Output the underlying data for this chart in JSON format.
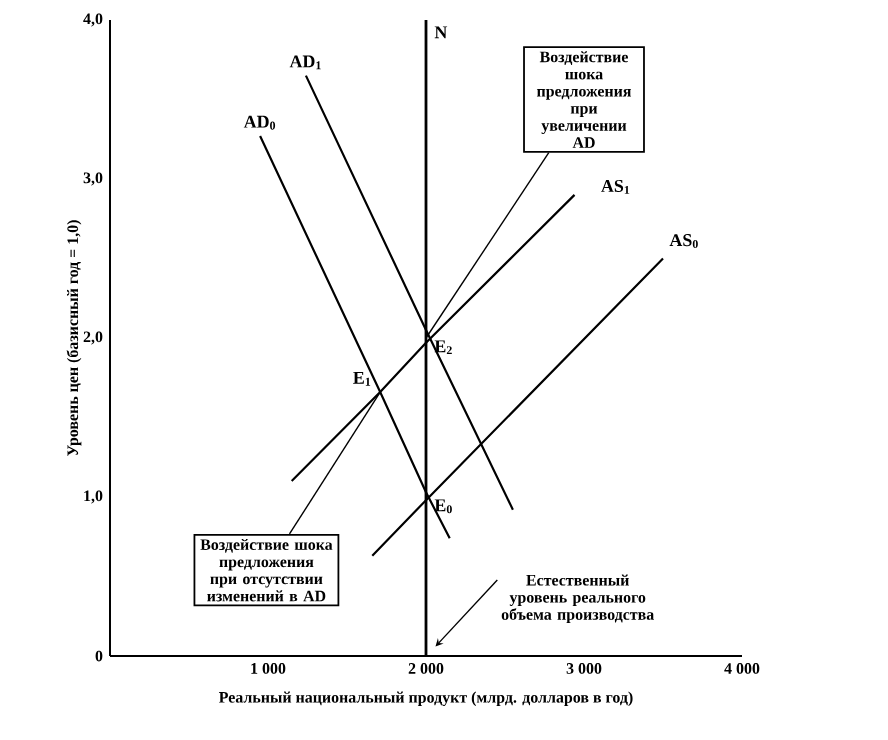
{
  "chart_data": {
    "type": "line",
    "xlabel": "Реальный национальный продукт (млрд. долларов в год)",
    "ylabel": "Уровень цен (базисный год = 1,0)",
    "xlim": [
      0,
      4000
    ],
    "ylim": [
      0,
      4
    ],
    "xticks": [
      {
        "value": 1000,
        "label": "1 000"
      },
      {
        "value": 2000,
        "label": "2 000"
      },
      {
        "value": 3000,
        "label": "3 000"
      },
      {
        "value": 4000,
        "label": "4 000"
      }
    ],
    "yticks": [
      0,
      {
        "value": 1,
        "label": "1,0"
      },
      {
        "value": 2,
        "label": "2,0"
      },
      {
        "value": 3,
        "label": "3,0"
      },
      {
        "value": 4,
        "label": "4,0"
      }
    ],
    "ref_lines": [
      {
        "axis": "x",
        "value": 2000,
        "label": "N",
        "color": "#000000"
      }
    ],
    "series": [
      {
        "name": "AD$_{1}$",
        "color": "#000000",
        "x": [
          1240,
          2000,
          2550
        ],
        "values": [
          3.65,
          2.05,
          0.92
        ]
      },
      {
        "name": "AD$_{0}$",
        "color": "#000000",
        "x": [
          950,
          1710,
          2000,
          2150
        ],
        "values": [
          3.27,
          1.66,
          1.03,
          0.74
        ]
      },
      {
        "name": "AS$_{1}$",
        "color": "#000000",
        "x": [
          1150,
          1710,
          2000,
          2940
        ],
        "values": [
          1.1,
          1.66,
          1.97,
          2.9
        ]
      },
      {
        "name": "AS$_{0}$",
        "color": "#000000",
        "x": [
          1660,
          2000,
          3500
        ],
        "values": [
          0.63,
          0.98,
          2.5
        ]
      }
    ],
    "annotations": [
      {
        "text": "E$_{0}$",
        "x": 2000,
        "y": 1.0
      },
      {
        "text": "E$_{1}$",
        "x": 1710,
        "y": 1.66
      },
      {
        "text": "E$_{2}$",
        "x": 2000,
        "y": 2.0
      },
      {
        "text": "Воздействие шока предложения при увеличении AD",
        "x": 2000,
        "y": 2.0
      },
      {
        "text": "Воздействие шока предложения при отсутствии изменений в AD",
        "x": 1710,
        "y": 1.66
      },
      {
        "text": "Естественный уровень реального объема производства",
        "x": 2060,
        "y": 0.06
      }
    ]
  }
}
